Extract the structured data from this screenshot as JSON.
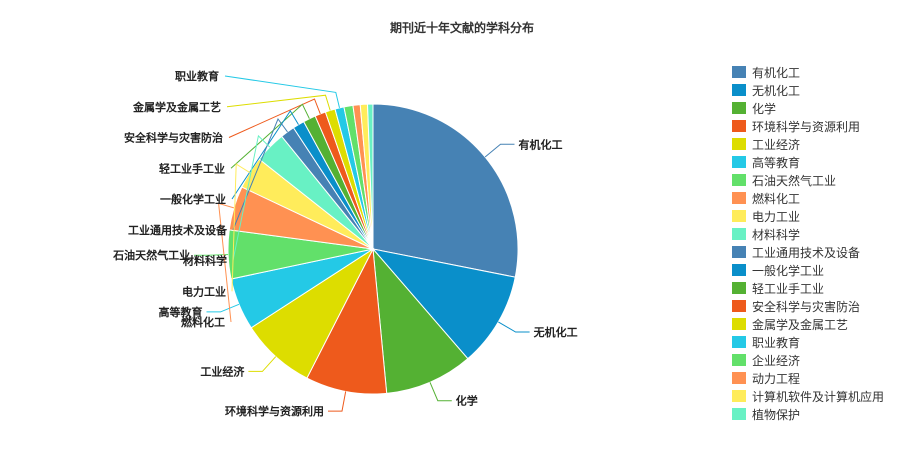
{
  "chart_data": {
    "type": "pie",
    "title": "期刊近十年文献的学科分布",
    "legend_position": "right",
    "categories": [
      "有机化工",
      "无机化工",
      "化学",
      "环境科学与资源利用",
      "工业经济",
      "高等教育",
      "石油天然气工业",
      "燃料化工",
      "电力工业",
      "材料科学",
      "工业通用技术及设备",
      "一般化学工业",
      "轻工业手工业",
      "安全科学与灾害防治",
      "金属学及金属工艺",
      "职业教育",
      "企业经济",
      "动力工程",
      "计算机软件及计算机应用",
      "植物保护"
    ],
    "values": [
      28.0,
      10.5,
      9.8,
      9.0,
      8.3,
      5.8,
      5.4,
      4.9,
      3.6,
      3.5,
      1.6,
      1.3,
      1.4,
      1.2,
      1.1,
      1.0,
      1.0,
      0.8,
      0.8,
      0.6
    ],
    "colors": [
      "#4682B4",
      "#0A8FCA",
      "#54B133",
      "#EE5A1C",
      "#DDDD00",
      "#24C9E6",
      "#62E06A",
      "#FF9152",
      "#FFEC5B",
      "#68F1C4",
      "#4682B4",
      "#0A8FCA",
      "#54B133",
      "#EE5A1C",
      "#DDDD00",
      "#24C9E6",
      "#62E06A",
      "#FF9152",
      "#FFEC5B",
      "#68F1C4"
    ],
    "labeled_slices": [
      "有机化工",
      "无机化工",
      "化学",
      "环境科学与资源利用",
      "工业经济",
      "高等教育",
      "石油天然气工业",
      "燃料化工",
      "电力工业",
      "材料科学",
      "工业通用技术及设备",
      "一般化学工业",
      "轻工业手工业",
      "安全科学与灾害防治",
      "金属学及金属工艺",
      "职业教育"
    ]
  }
}
